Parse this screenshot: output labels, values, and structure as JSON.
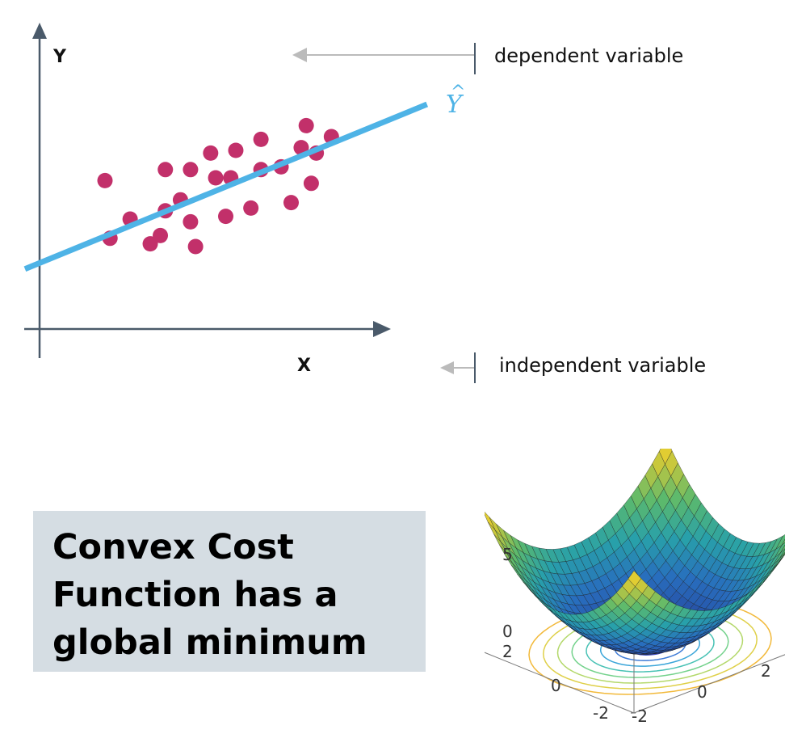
{
  "regression": {
    "y_axis_label": "Y",
    "x_axis_label": "X",
    "prediction_symbol": "Y",
    "prediction_hat": "^",
    "dependent_label": "dependent variable",
    "independent_label": "independent variable",
    "colors": {
      "points": "#c2306a",
      "line": "#4eb3e6",
      "axis": "#4a5a6a",
      "annotation_arrow": "#bbbbbb"
    },
    "points": [
      [
        1.3,
        5.4
      ],
      [
        1.4,
        3.3
      ],
      [
        1.8,
        4.0
      ],
      [
        2.2,
        3.1
      ],
      [
        2.5,
        4.3
      ],
      [
        2.5,
        5.8
      ],
      [
        2.4,
        3.4
      ],
      [
        2.8,
        4.7
      ],
      [
        3.0,
        5.8
      ],
      [
        3.0,
        3.9
      ],
      [
        3.1,
        3.0
      ],
      [
        3.4,
        6.4
      ],
      [
        3.5,
        5.5
      ],
      [
        3.7,
        4.1
      ],
      [
        3.9,
        6.5
      ],
      [
        3.8,
        5.5
      ],
      [
        4.2,
        4.4
      ],
      [
        4.4,
        6.9
      ],
      [
        4.4,
        5.8
      ],
      [
        4.8,
        5.9
      ],
      [
        5.0,
        4.6
      ],
      [
        5.2,
        6.6
      ],
      [
        5.3,
        7.4
      ],
      [
        5.4,
        5.3
      ],
      [
        5.5,
        6.4
      ],
      [
        5.8,
        7.0
      ]
    ],
    "fit_line": {
      "intercept": 2.4,
      "slope": 0.75
    }
  },
  "cost": {
    "lines": [
      "Convex Cost",
      "Function has a",
      "global minimum"
    ]
  },
  "surface": {
    "function": "x^2 + y^2",
    "z_ticks": [
      "5",
      "0"
    ],
    "y_ticks_left": [
      "2",
      "0",
      "-2"
    ],
    "x_ticks_right": [
      "2",
      "0",
      "-2"
    ]
  }
}
